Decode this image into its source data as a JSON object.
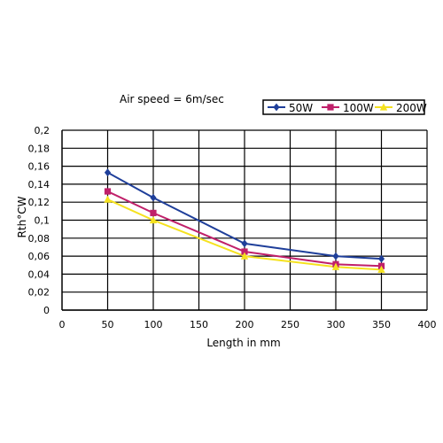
{
  "chart_data": {
    "type": "line",
    "annotation": "Air speed = 6m/sec",
    "xlabel": "Length in mm",
    "ylabel": "Rth°CW",
    "xlim": [
      0,
      400
    ],
    "ylim": [
      0,
      0.2
    ],
    "xticks": [
      "0",
      "50",
      "100",
      "150",
      "200",
      "250",
      "300",
      "350",
      "400"
    ],
    "yticks": [
      "0",
      "0,02",
      "0,04",
      "0,06",
      "0,08",
      "0,1",
      "0,12",
      "0,14",
      "0,16",
      "0,18",
      "0,2"
    ],
    "grid": {
      "horizontal": true,
      "vertical": true
    },
    "legend_position": "top-right",
    "x": [
      50,
      100,
      200,
      300,
      350
    ],
    "series": [
      {
        "name": "50W",
        "color": "#1f3f9a",
        "marker": "diamond",
        "values": [
          0.153,
          0.125,
          0.074,
          0.06,
          0.057
        ]
      },
      {
        "name": "100W",
        "color": "#c0206a",
        "marker": "square",
        "values": [
          0.132,
          0.108,
          0.065,
          0.051,
          0.049
        ]
      },
      {
        "name": "200W",
        "color": "#f5e21f",
        "marker": "triangle",
        "values": [
          0.123,
          0.1,
          0.06,
          0.048,
          0.045
        ]
      }
    ]
  }
}
